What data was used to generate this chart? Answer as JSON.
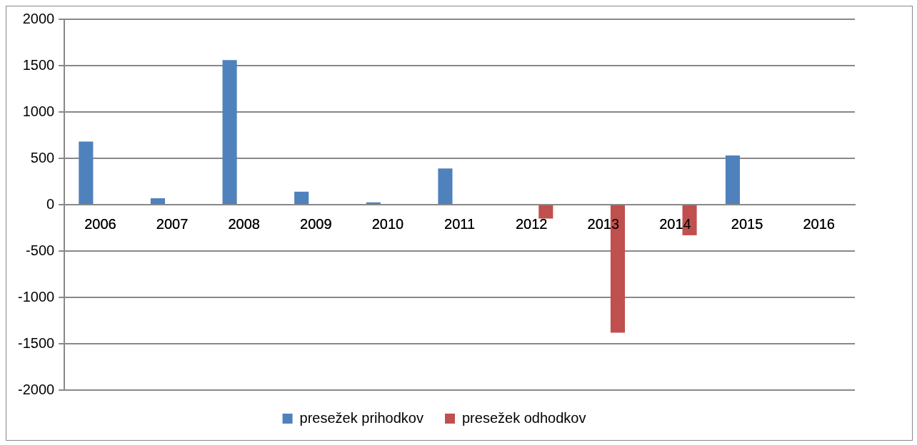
{
  "chart_data": {
    "type": "bar",
    "categories": [
      "2006",
      "2007",
      "2008",
      "2009",
      "2010",
      "2011",
      "2012",
      "2013",
      "2014",
      "2015",
      "2016"
    ],
    "series": [
      {
        "name": "presežek prihodkov",
        "color": "#4f81bd",
        "values": [
          680,
          70,
          1560,
          140,
          25,
          390,
          null,
          null,
          null,
          530,
          null
        ]
      },
      {
        "name": "presežek odhodkov",
        "color": "#c0504d",
        "values": [
          null,
          null,
          null,
          null,
          null,
          null,
          -150,
          -1380,
          -330,
          null,
          null
        ]
      }
    ],
    "ylim": [
      -2000,
      2000
    ],
    "yticks": [
      -2000,
      -1500,
      -1000,
      -500,
      0,
      500,
      1000,
      1500,
      2000
    ],
    "grid": "y",
    "legend": "bottom"
  }
}
